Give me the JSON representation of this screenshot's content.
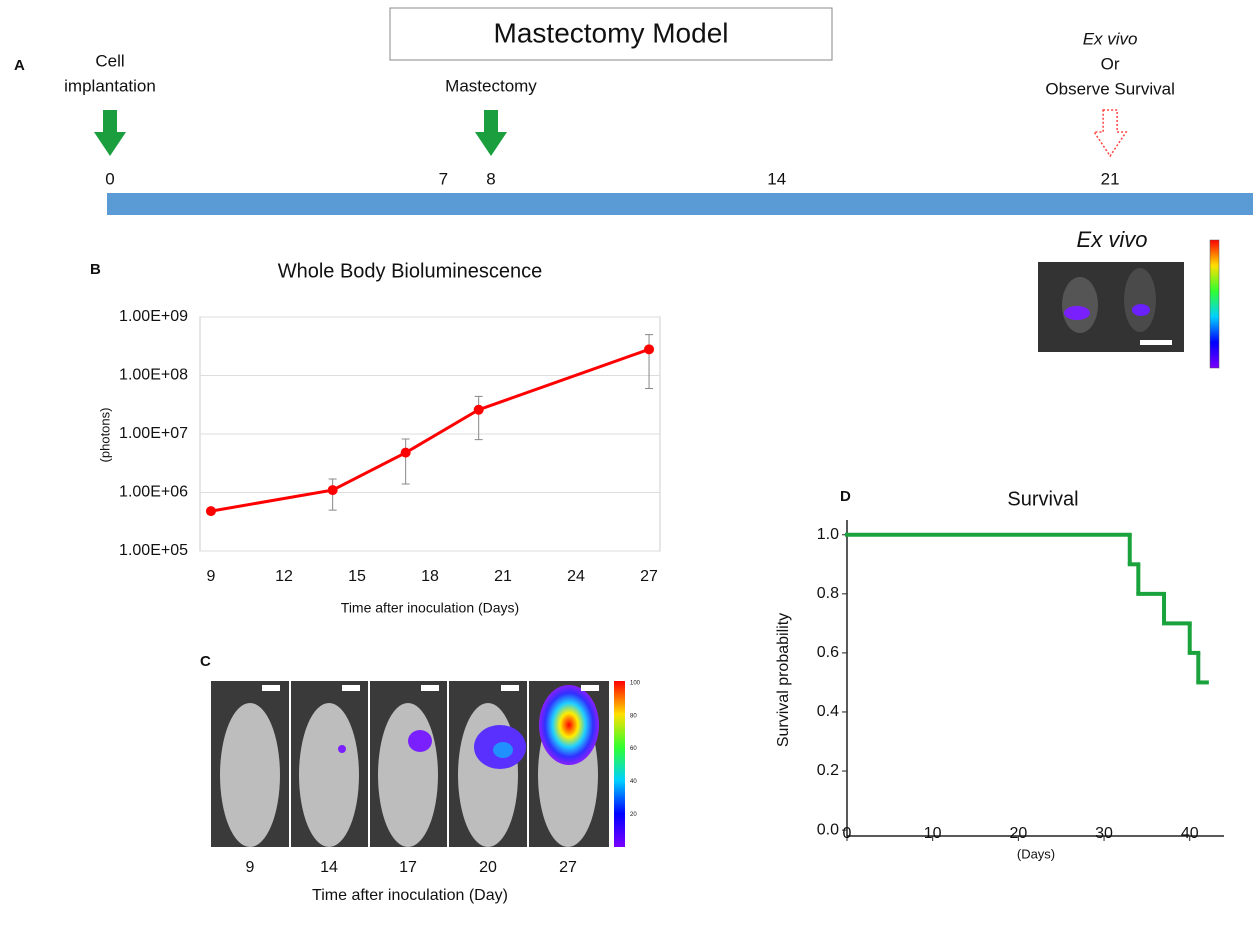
{
  "panel_labels": [
    "A",
    "B",
    "C",
    "D"
  ],
  "timeline": {
    "title": "Mastectomy Model",
    "events": [
      {
        "lines": [
          "Cell",
          "implantation"
        ],
        "day": 0
      },
      {
        "lines": [
          "Mastectomy"
        ],
        "day": 8
      }
    ],
    "observe": {
      "lines": [
        "Ex vivo",
        "Or",
        "Observe Survival"
      ],
      "day": 21
    },
    "ticks": [
      0,
      7,
      8,
      14,
      21
    ],
    "lim": [
      0,
      24
    ]
  },
  "ex_vivo": {
    "title": "Ex vivo"
  },
  "imaging": {
    "days": [
      9,
      14,
      17,
      20,
      27
    ],
    "x_label": "Time after inoculation (Day)",
    "colorbar_ticks": [
      100,
      80,
      60,
      40,
      20
    ]
  },
  "chart_data": [
    {
      "type": "line",
      "title": "Whole Body Bioluminescence",
      "x_label": "Time after inoculation (Days)",
      "y_label": "(photons)",
      "x": [
        9,
        14,
        17,
        20,
        27
      ],
      "values": [
        480000,
        1100000,
        4800000,
        26000000,
        280000000
      ],
      "errors": [
        null,
        600000,
        3400000,
        18000000,
        220000000
      ],
      "color": "#ff0000",
      "log_scale": true,
      "grid": true,
      "xlim": [
        8.55,
        27.45
      ],
      "xticks": [
        9,
        12,
        15,
        18,
        21,
        24,
        27
      ],
      "ylim": [
        100000,
        1000000000
      ],
      "yticks": [
        {
          "value": 100000,
          "label": "1.00E+05"
        },
        {
          "value": 1000000,
          "label": "1.00E+06"
        },
        {
          "value": 10000000,
          "label": "1.00E+07"
        },
        {
          "value": 100000000,
          "label": "1.00E+08"
        },
        {
          "value": 1000000000,
          "label": "1.00E+09"
        }
      ]
    },
    {
      "type": "step",
      "title": "Survival",
      "x_label": "(Days)",
      "y_label": "Survival probability",
      "x": [
        0,
        33,
        34,
        37,
        40,
        41,
        42
      ],
      "values": [
        1.0,
        0.9,
        0.8,
        0.7,
        0.6,
        0.5,
        0.5
      ],
      "color": "#1aa33c",
      "xlim": [
        0,
        44
      ],
      "xticks": [
        0,
        10,
        20,
        30,
        40
      ],
      "ylim": [
        -0.02,
        1.05
      ],
      "yticks": [
        {
          "value": 0,
          "label": "0.0"
        },
        {
          "value": 0.2,
          "label": "0.2"
        },
        {
          "value": 0.4,
          "label": "0.4"
        },
        {
          "value": 0.6,
          "label": "0.6"
        },
        {
          "value": 0.8,
          "label": "0.8"
        },
        {
          "value": 1.0,
          "label": "1.0"
        }
      ]
    }
  ]
}
